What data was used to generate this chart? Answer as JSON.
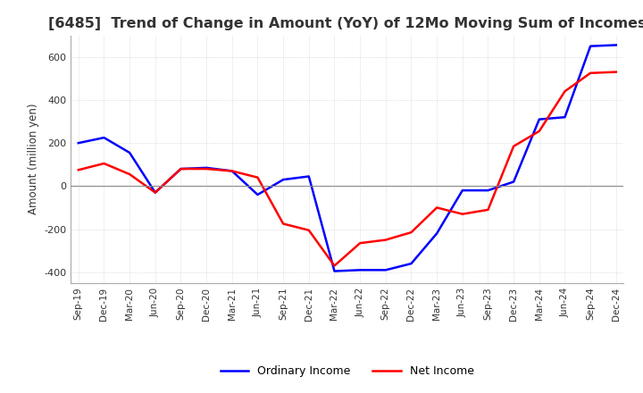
{
  "title": "[6485]  Trend of Change in Amount (YoY) of 12Mo Moving Sum of Incomes",
  "ylabel": "Amount (million yen)",
  "ylim": [
    -450,
    700
  ],
  "yticks": [
    -400,
    -200,
    0,
    200,
    400,
    600
  ],
  "x_labels": [
    "Sep-19",
    "Dec-19",
    "Mar-20",
    "Jun-20",
    "Sep-20",
    "Dec-20",
    "Mar-21",
    "Jun-21",
    "Sep-21",
    "Dec-21",
    "Mar-22",
    "Jun-22",
    "Sep-22",
    "Dec-22",
    "Mar-23",
    "Jun-23",
    "Sep-23",
    "Dec-23",
    "Mar-24",
    "Jun-24",
    "Sep-24",
    "Dec-24"
  ],
  "ordinary_income": [
    200,
    225,
    155,
    -30,
    80,
    85,
    70,
    -40,
    30,
    45,
    -395,
    -390,
    -390,
    -360,
    -220,
    -20,
    -20,
    20,
    310,
    320,
    650,
    655
  ],
  "net_income": [
    75,
    105,
    55,
    -30,
    80,
    80,
    70,
    40,
    -175,
    -205,
    -370,
    -265,
    -250,
    -215,
    -100,
    -130,
    -110,
    185,
    255,
    440,
    525,
    530
  ],
  "ordinary_color": "#0000ff",
  "net_color": "#ff0000",
  "bg_color": "#ffffff",
  "grid_color": "#c8c8c8",
  "title_color": "#333333",
  "legend_labels": [
    "Ordinary Income",
    "Net Income"
  ]
}
